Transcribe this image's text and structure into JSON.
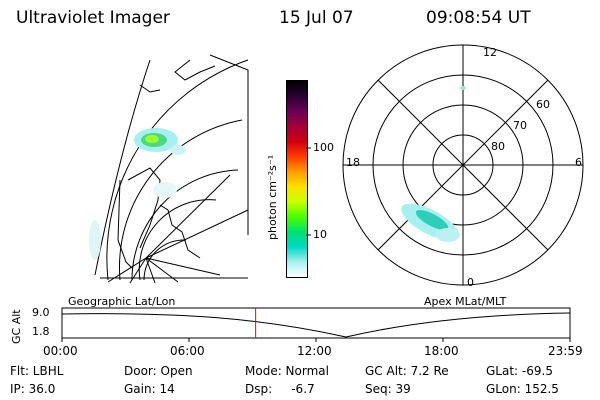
{
  "header": {
    "instrument": "Ultraviolet Imager",
    "date": "15 Jul 07",
    "time": "09:08:54 UT"
  },
  "left_map": {
    "label": "Geographic Lat/Lon"
  },
  "colorbar": {
    "unit_label": "photon cm⁻²s⁻¹",
    "ticks": [
      {
        "label": "100",
        "value": 100
      },
      {
        "label": "10",
        "value": 10
      }
    ],
    "colors": [
      "#000000",
      "#2a0033",
      "#6a0056",
      "#a0003a",
      "#d00010",
      "#ff3a00",
      "#ff9a00",
      "#ffe100",
      "#c8ff00",
      "#4cff00",
      "#00e070",
      "#00d8c8",
      "#a8f0f0",
      "#ffffff"
    ]
  },
  "polar_map": {
    "label": "Apex MLat/MLT",
    "mlt_labels": {
      "top": "12",
      "left": "18",
      "right": "6",
      "bottom": "0"
    },
    "lat_labels": [
      "60",
      "70",
      "80"
    ]
  },
  "timeline": {
    "ylabel": "GC Alt",
    "ytick_top": "9.0",
    "ytick_bottom": "1.8",
    "xticks": [
      "00:00",
      "06:00",
      "12:00",
      "18:00",
      "23:59"
    ],
    "current_time_hours": 9.148
  },
  "footer": {
    "row1": {
      "flt": "Flt: LBHL",
      "door": "Door: Open",
      "mode": "Mode: Normal",
      "gcalt": "GC Alt: 7.2 Re",
      "glat": "GLat: -69.5"
    },
    "row2": {
      "ip": "IP: 36.0",
      "gain": "Gain: 14",
      "dsp": "Dsp:     -6.7",
      "seq": "Seq: 39",
      "glon": "GLon: 152.5"
    }
  }
}
